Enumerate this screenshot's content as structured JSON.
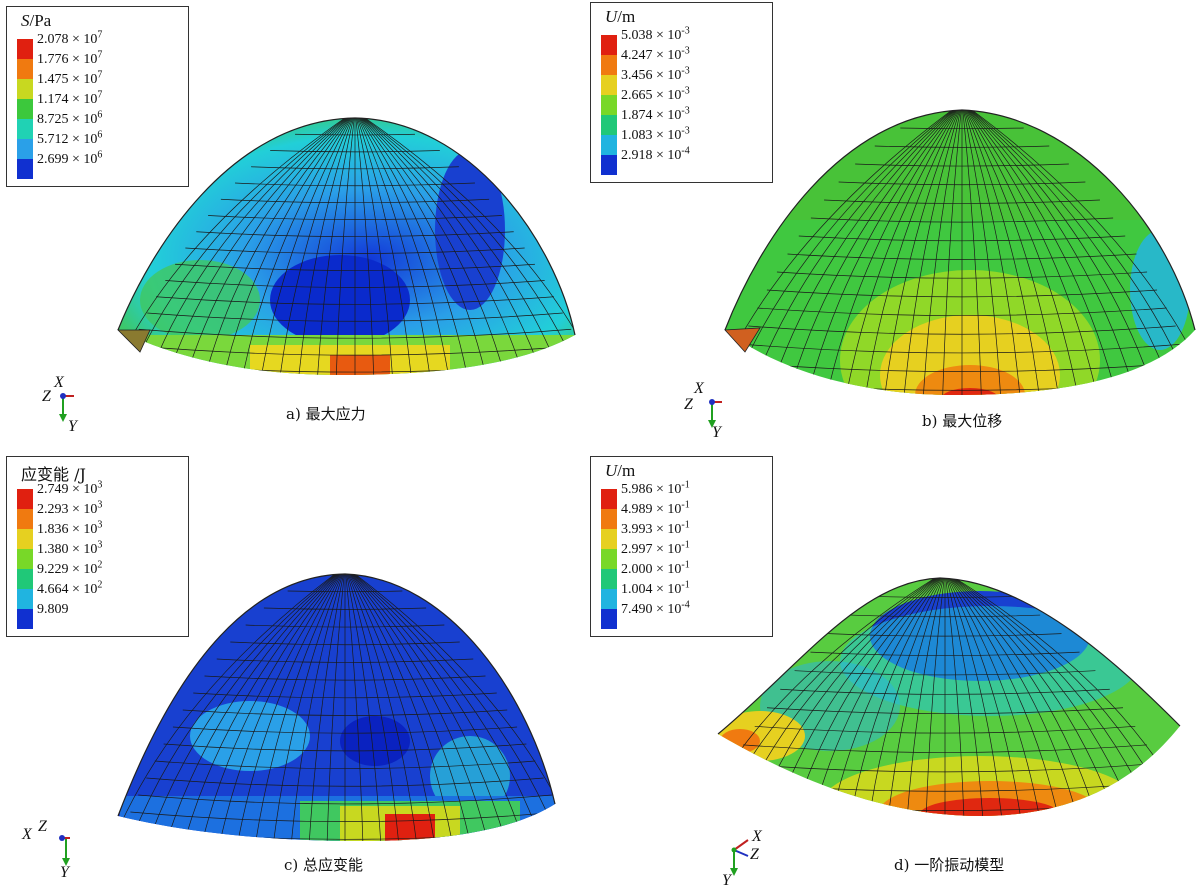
{
  "panels": [
    {
      "id": "a",
      "legend_title_var": "S",
      "legend_title_unit": "/Pa",
      "legend": [
        {
          "m": "2.078",
          "e": "7",
          "color": "#e02010"
        },
        {
          "m": "1.776",
          "e": "7",
          "color": "#f07a10"
        },
        {
          "m": "1.475",
          "e": "7",
          "color": "#c8d820"
        },
        {
          "m": "1.174",
          "e": "7",
          "color": "#3cc83c"
        },
        {
          "m": "8.725",
          "e": "6",
          "color": "#20d2b4"
        },
        {
          "m": "5.712",
          "e": "6",
          "color": "#2aa0e8"
        },
        {
          "m": "2.699",
          "e": "6",
          "color": "#1030d0"
        }
      ],
      "caption": "a)  最大应力",
      "axes": {
        "a1": "X",
        "a2": "Z",
        "a3": "Y"
      }
    },
    {
      "id": "b",
      "legend_title_var": "U",
      "legend_title_unit": "/m",
      "legend": [
        {
          "m": "5.038",
          "e": "-3",
          "color": "#e02010"
        },
        {
          "m": "4.247",
          "e": "-3",
          "color": "#f07a10"
        },
        {
          "m": "3.456",
          "e": "-3",
          "color": "#e6d020"
        },
        {
          "m": "2.665",
          "e": "-3",
          "color": "#78d828"
        },
        {
          "m": "1.874",
          "e": "-3",
          "color": "#20c878"
        },
        {
          "m": "1.083",
          "e": "-3",
          "color": "#20b4e0"
        },
        {
          "m": "2.918",
          "e": "-4",
          "color": "#1030d0"
        }
      ],
      "caption": "b)  最大位移",
      "axes": {
        "a1": "X",
        "a2": "Z",
        "a3": "Y"
      }
    },
    {
      "id": "c",
      "legend_title_var": "",
      "legend_title_unit": "应变能 /J",
      "legend": [
        {
          "m": "2.749",
          "e": "3",
          "color": "#e02010"
        },
        {
          "m": "2.293",
          "e": "3",
          "color": "#f07a10"
        },
        {
          "m": "1.836",
          "e": "3",
          "color": "#e6d020"
        },
        {
          "m": "1.380",
          "e": "3",
          "color": "#78d828"
        },
        {
          "m": "9.229",
          "e": "2",
          "color": "#20c878"
        },
        {
          "m": "4.664",
          "e": "2",
          "color": "#20b4e0"
        },
        {
          "m": "9.809",
          "e": "",
          "color": "#1030d0"
        }
      ],
      "caption": "c)  总应变能",
      "axes": {
        "a1": "X",
        "a2": "Z",
        "a3": "Y"
      }
    },
    {
      "id": "d",
      "legend_title_var": "U",
      "legend_title_unit": "/m",
      "legend": [
        {
          "m": "5.986",
          "e": "-1",
          "color": "#e02010"
        },
        {
          "m": "4.989",
          "e": "-1",
          "color": "#f07a10"
        },
        {
          "m": "3.993",
          "e": "-1",
          "color": "#e6d020"
        },
        {
          "m": "2.997",
          "e": "-1",
          "color": "#78d828"
        },
        {
          "m": "2.000",
          "e": "-1",
          "color": "#20c878"
        },
        {
          "m": "1.004",
          "e": "-1",
          "color": "#20b4e0"
        },
        {
          "m": "7.490",
          "e": "-4",
          "color": "#1030d0"
        }
      ],
      "caption": "d)  一阶振动模型",
      "axes": {
        "a1": "X",
        "a2": "Z",
        "a3": "Y"
      }
    }
  ]
}
